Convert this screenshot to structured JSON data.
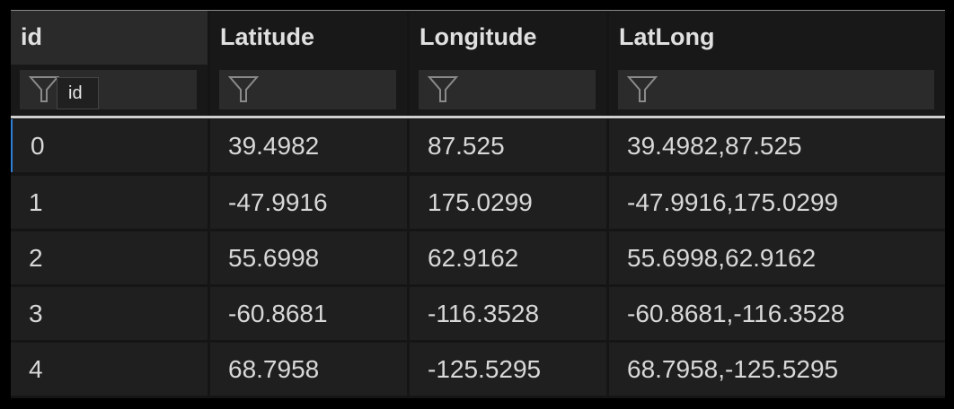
{
  "columns": [
    {
      "label": "id"
    },
    {
      "label": "Latitude"
    },
    {
      "label": "Longitude"
    },
    {
      "label": "LatLong"
    }
  ],
  "filter_icon": "filter-funnel-icon",
  "tooltip": "id",
  "selection_color": "#2f7fd6",
  "rows": [
    [
      "0",
      "39.4982",
      "87.525",
      "39.4982,87.525"
    ],
    [
      "1",
      "-47.9916",
      "175.0299",
      "-47.9916,175.0299"
    ],
    [
      "2",
      "55.6998",
      "62.9162",
      "55.6998,62.9162"
    ],
    [
      "3",
      "-60.8681",
      "-116.3528",
      "-60.8681,-116.3528"
    ],
    [
      "4",
      "68.7958",
      "-125.5295",
      "68.7958,-125.5295"
    ]
  ]
}
